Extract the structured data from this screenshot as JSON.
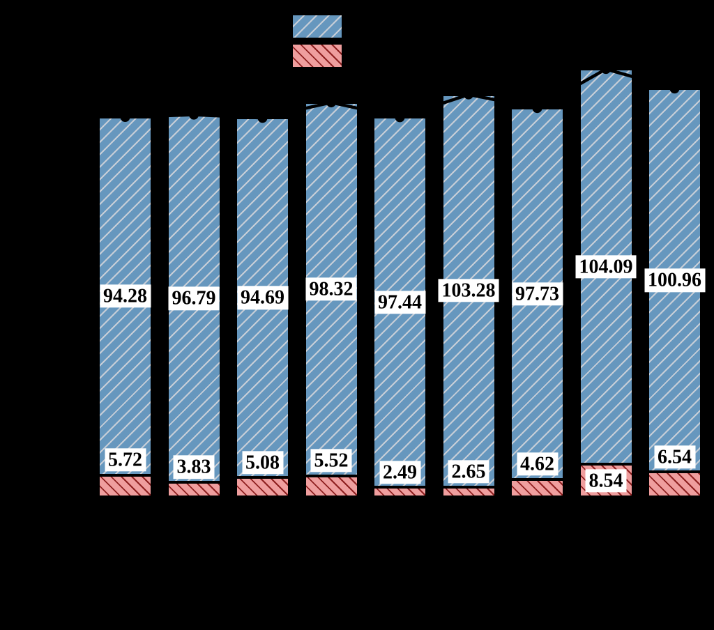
{
  "background_color": "#000000",
  "chart_data": {
    "type": "bar",
    "stacked": true,
    "orientation": "vertical",
    "grid": false,
    "axes_text_visible": false,
    "num_bars": 9,
    "series": [
      {
        "id": "blue-hatched-series",
        "stack_position": "top",
        "fill_color": "#6697be",
        "hatch": "/",
        "hatch_color": "#c7ced7",
        "edge_color": "#000000",
        "values": [
          94.28,
          96.79,
          94.69,
          98.32,
          97.44,
          103.28,
          97.73,
          104.09,
          100.96
        ],
        "labels": [
          "94.28",
          "96.79",
          "94.69",
          "98.32",
          "97.44",
          "103.28",
          "97.73",
          "104.09",
          "100.96"
        ]
      },
      {
        "id": "red-hatched-series",
        "stack_position": "bottom",
        "fill_color": "#ef9e9e",
        "hatch": "\\",
        "hatch_color": "#8e2020",
        "edge_color": "#000000",
        "values": [
          5.72,
          3.83,
          5.08,
          5.52,
          2.49,
          2.65,
          4.62,
          8.54,
          6.54
        ],
        "labels": [
          "5.72",
          "3.83",
          "5.08",
          "5.52",
          "2.49",
          "2.65",
          "4.62",
          "8.54",
          "6.54"
        ]
      }
    ],
    "totals_line": {
      "color": "#000000",
      "marker": "circle",
      "marker_color": "#000000",
      "values": [
        100.0,
        100.62,
        99.77,
        103.84,
        99.93,
        105.93,
        102.35,
        112.63,
        107.5
      ]
    },
    "value_label_style": {
      "bg": "#ffffff",
      "fg": "#000000"
    },
    "legend": {
      "position": "top-center",
      "entries": [
        {
          "swatch": "blue-hatched-series",
          "text_visible": false
        },
        {
          "swatch": "red-hatched-series",
          "text_visible": false
        }
      ]
    }
  }
}
